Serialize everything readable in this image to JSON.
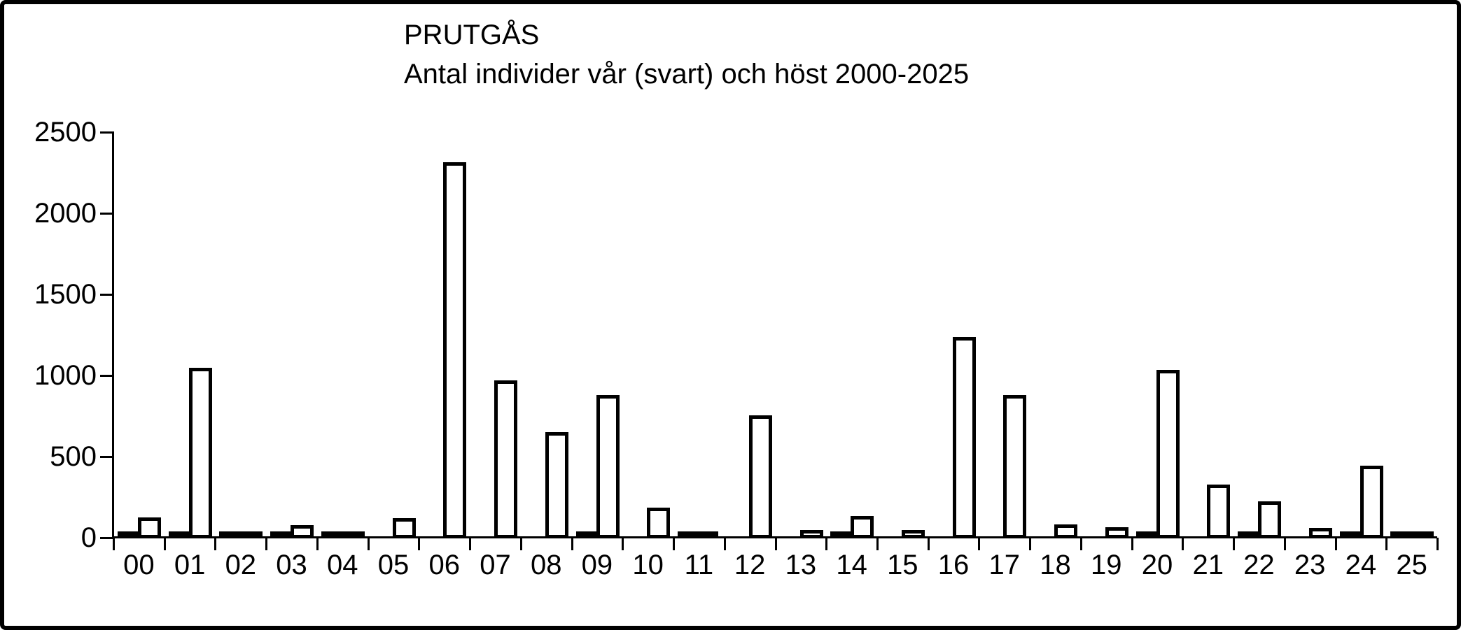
{
  "chart_data": {
    "type": "bar",
    "title": "PRUTGÅS",
    "subtitle": "Antal individer vår (svart) och höst 2000-2025",
    "categories": [
      "00",
      "01",
      "02",
      "03",
      "04",
      "05",
      "06",
      "07",
      "08",
      "09",
      "10",
      "11",
      "12",
      "13",
      "14",
      "15",
      "16",
      "17",
      "18",
      "19",
      "20",
      "21",
      "22",
      "23",
      "24",
      "25"
    ],
    "series": [
      {
        "name": "vår (svart)",
        "color": "#000000",
        "values": [
          5,
          5,
          5,
          5,
          5,
          0,
          0,
          0,
          0,
          5,
          0,
          8,
          0,
          0,
          5,
          0,
          0,
          0,
          0,
          0,
          5,
          0,
          5,
          0,
          5,
          5
        ]
      },
      {
        "name": "höst",
        "color": "#ffffff",
        "values": [
          130,
          1050,
          25,
          80,
          8,
          125,
          2320,
          975,
          655,
          885,
          190,
          0,
          760,
          50,
          140,
          35,
          1240,
          885,
          85,
          70,
          1040,
          330,
          230,
          65,
          450,
          5
        ]
      }
    ],
    "xlabel": "",
    "ylabel": "",
    "ylim": [
      0,
      2500
    ],
    "yticks": [
      0,
      500,
      1000,
      1500,
      2000,
      2500
    ],
    "grid": "off",
    "legend": "none",
    "bar_colors": {
      "spring_fill": "#000000",
      "autumn_fill": "#ffffff",
      "outline": "#000000"
    }
  }
}
